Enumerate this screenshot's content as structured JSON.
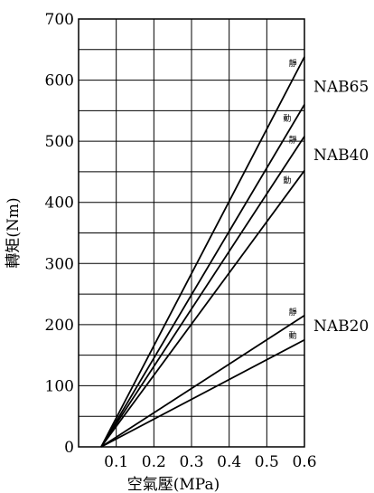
{
  "chart_data": {
    "type": "line",
    "title": "",
    "xlabel": "空氣壓(MPa)",
    "ylabel": "轉矩(Nm)",
    "xlim": [
      0,
      0.6
    ],
    "ylim": [
      0,
      700
    ],
    "grid": true,
    "x_ticks": [
      "0.1",
      "0.2",
      "0.3",
      "0.4",
      "0.5",
      "0.6"
    ],
    "y_ticks": [
      "0",
      "100",
      "200",
      "300",
      "400",
      "500",
      "600",
      "700"
    ],
    "series": [
      {
        "x": [
          0.06,
          0.6
        ],
        "y": [
          0,
          638
        ],
        "label": "靜"
      },
      {
        "x": [
          0.06,
          0.6
        ],
        "y": [
          0,
          560
        ],
        "label": "動"
      },
      {
        "x": [
          0.06,
          0.6
        ],
        "y": [
          0,
          508
        ],
        "label": "靜"
      },
      {
        "x": [
          0.06,
          0.6
        ],
        "y": [
          0,
          452
        ],
        "label": "動"
      },
      {
        "x": [
          0.06,
          0.6
        ],
        "y": [
          0,
          215
        ],
        "label": "靜"
      },
      {
        "x": [
          0.06,
          0.6
        ],
        "y": [
          0,
          175
        ],
        "label": "動"
      }
    ],
    "groups": [
      {
        "name": "NAB65",
        "y": 590
      },
      {
        "name": "NAB40",
        "y": 478
      },
      {
        "name": "NAB20",
        "y": 198
      }
    ]
  }
}
